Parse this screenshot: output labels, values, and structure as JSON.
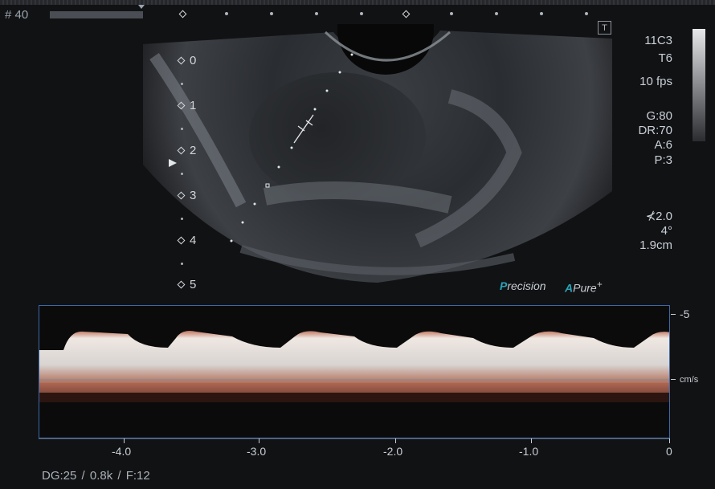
{
  "frame": {
    "label": "# 40"
  },
  "transducer": {
    "probe": "11C3",
    "preset": "T6",
    "fps": "10 fps"
  },
  "image_params": {
    "gain": "G:80",
    "dynamic_range": "DR:70",
    "a": "A:6",
    "p": "P:3"
  },
  "angle_params": {
    "angle_value": "2.0",
    "angle_deg": "4°",
    "gate": "1.9cm"
  },
  "depth_scale": [
    "0",
    "1",
    "2",
    "3",
    "4",
    "5"
  ],
  "brand": {
    "precision_mark": "P",
    "precision_rest": "recision",
    "apure_mark": "A",
    "apure_rest": "Pure",
    "plus": "+"
  },
  "spectral": {
    "time_axis": [
      "-4.0",
      "-3.0",
      "-2.0",
      "-1.0",
      "0"
    ],
    "velocity_top": "-5",
    "velocity_unit": "cm/s"
  },
  "footer": {
    "text": "DG:25   / 0.8k    / F:12"
  },
  "icons": {
    "top_right": "T"
  },
  "colors": {
    "frame_border": "#3d68a8",
    "doppler_tint": "#c0765e",
    "brand_cyan": "#2aa3b8"
  }
}
